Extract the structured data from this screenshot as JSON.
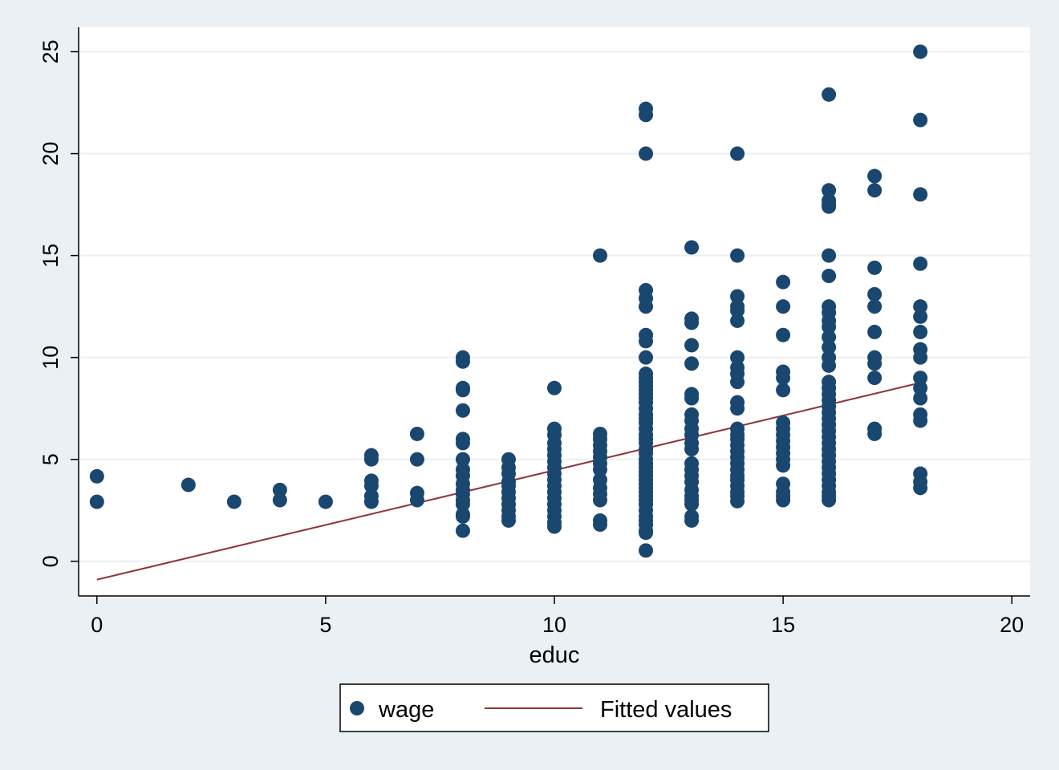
{
  "chart_data": {
    "type": "scatter",
    "title": "",
    "xlabel": "educ",
    "ylabel": "",
    "xlim": [
      -0.4,
      20.4
    ],
    "ylim": [
      -1.7,
      26.2
    ],
    "grid": true,
    "legend_position": "bottom",
    "x_ticks": [
      "0",
      "5",
      "10",
      "15",
      "20"
    ],
    "y_ticks": [
      "0",
      "5",
      "10",
      "15",
      "20",
      "25"
    ],
    "colors": {
      "background": "#eaf0f3",
      "plot_area": "#ffffff",
      "marker": "#1a476f",
      "fit_line": "#90353b",
      "gridline": "#eaf0f3"
    },
    "series": [
      {
        "name": "wage",
        "kind": "scatter",
        "points": [
          [
            0,
            4.17
          ],
          [
            0,
            2.92
          ],
          [
            2,
            3.75
          ],
          [
            3,
            2.92
          ],
          [
            4,
            3.5
          ],
          [
            4,
            3.0
          ],
          [
            5,
            2.92
          ],
          [
            6,
            5.2
          ],
          [
            6,
            5.0
          ],
          [
            6,
            3.95
          ],
          [
            6,
            3.7
          ],
          [
            6,
            3.2
          ],
          [
            6,
            2.92
          ],
          [
            7,
            6.25
          ],
          [
            7,
            5.0
          ],
          [
            7,
            3.35
          ],
          [
            7,
            3.0
          ],
          [
            8,
            10.0
          ],
          [
            8,
            9.8
          ],
          [
            8,
            8.5
          ],
          [
            8,
            8.4
          ],
          [
            8,
            7.4
          ],
          [
            8,
            6.0
          ],
          [
            8,
            5.8
          ],
          [
            8,
            5.0
          ],
          [
            8,
            4.5
          ],
          [
            8,
            4.2
          ],
          [
            8,
            3.8
          ],
          [
            8,
            3.5
          ],
          [
            8,
            3.3
          ],
          [
            8,
            3.0
          ],
          [
            8,
            2.8
          ],
          [
            8,
            2.3
          ],
          [
            8,
            2.2
          ],
          [
            8,
            1.5
          ],
          [
            9,
            5.0
          ],
          [
            9,
            4.6
          ],
          [
            9,
            4.3
          ],
          [
            9,
            3.9
          ],
          [
            9,
            3.7
          ],
          [
            9,
            3.4
          ],
          [
            9,
            3.1
          ],
          [
            9,
            2.8
          ],
          [
            9,
            2.5
          ],
          [
            9,
            2.2
          ],
          [
            9,
            2.0
          ],
          [
            10,
            8.5
          ],
          [
            10,
            6.5
          ],
          [
            10,
            6.2
          ],
          [
            10,
            5.8
          ],
          [
            10,
            5.5
          ],
          [
            10,
            5.2
          ],
          [
            10,
            4.9
          ],
          [
            10,
            4.6
          ],
          [
            10,
            4.3
          ],
          [
            10,
            4.0
          ],
          [
            10,
            3.7
          ],
          [
            10,
            3.4
          ],
          [
            10,
            3.1
          ],
          [
            10,
            2.8
          ],
          [
            10,
            2.5
          ],
          [
            10,
            2.2
          ],
          [
            10,
            1.9
          ],
          [
            10,
            1.7
          ],
          [
            11,
            15.0
          ],
          [
            11,
            6.25
          ],
          [
            11,
            6.0
          ],
          [
            11,
            5.7
          ],
          [
            11,
            5.4
          ],
          [
            11,
            5.1
          ],
          [
            11,
            4.8
          ],
          [
            11,
            4.5
          ],
          [
            11,
            4.0
          ],
          [
            11,
            3.6
          ],
          [
            11,
            3.3
          ],
          [
            11,
            3.0
          ],
          [
            11,
            2.0
          ],
          [
            11,
            1.8
          ],
          [
            12,
            22.2
          ],
          [
            12,
            21.9
          ],
          [
            12,
            20.0
          ],
          [
            12,
            13.3
          ],
          [
            12,
            12.9
          ],
          [
            12,
            12.5
          ],
          [
            12,
            11.1
          ],
          [
            12,
            10.8
          ],
          [
            12,
            10.0
          ],
          [
            12,
            9.2
          ],
          [
            12,
            9.0
          ],
          [
            12,
            8.8
          ],
          [
            12,
            8.6
          ],
          [
            12,
            8.4
          ],
          [
            12,
            8.2
          ],
          [
            12,
            8.0
          ],
          [
            12,
            7.8
          ],
          [
            12,
            7.5
          ],
          [
            12,
            7.2
          ],
          [
            12,
            7.0
          ],
          [
            12,
            6.8
          ],
          [
            12,
            6.5
          ],
          [
            12,
            6.2
          ],
          [
            12,
            6.0
          ],
          [
            12,
            5.8
          ],
          [
            12,
            5.5
          ],
          [
            12,
            5.3
          ],
          [
            12,
            5.0
          ],
          [
            12,
            4.8
          ],
          [
            12,
            4.6
          ],
          [
            12,
            4.4
          ],
          [
            12,
            4.2
          ],
          [
            12,
            4.0
          ],
          [
            12,
            3.8
          ],
          [
            12,
            3.6
          ],
          [
            12,
            3.4
          ],
          [
            12,
            3.2
          ],
          [
            12,
            3.0
          ],
          [
            12,
            2.8
          ],
          [
            12,
            2.5
          ],
          [
            12,
            2.2
          ],
          [
            12,
            2.0
          ],
          [
            12,
            1.8
          ],
          [
            12,
            1.5
          ],
          [
            12,
            1.4
          ],
          [
            12,
            0.53
          ],
          [
            13,
            15.4
          ],
          [
            13,
            11.9
          ],
          [
            13,
            11.7
          ],
          [
            13,
            10.6
          ],
          [
            13,
            9.7
          ],
          [
            13,
            8.2
          ],
          [
            13,
            8.0
          ],
          [
            13,
            7.2
          ],
          [
            13,
            6.9
          ],
          [
            13,
            6.5
          ],
          [
            13,
            6.2
          ],
          [
            13,
            5.8
          ],
          [
            13,
            5.5
          ],
          [
            13,
            4.8
          ],
          [
            13,
            4.5
          ],
          [
            13,
            4.2
          ],
          [
            13,
            3.9
          ],
          [
            13,
            3.5
          ],
          [
            13,
            3.2
          ],
          [
            13,
            3.0
          ],
          [
            13,
            2.8
          ],
          [
            13,
            2.2
          ],
          [
            13,
            2.0
          ],
          [
            14,
            20.0
          ],
          [
            14,
            15.0
          ],
          [
            14,
            13.0
          ],
          [
            14,
            12.5
          ],
          [
            14,
            12.3
          ],
          [
            14,
            11.8
          ],
          [
            14,
            10.0
          ],
          [
            14,
            9.5
          ],
          [
            14,
            9.2
          ],
          [
            14,
            8.8
          ],
          [
            14,
            7.8
          ],
          [
            14,
            7.5
          ],
          [
            14,
            6.5
          ],
          [
            14,
            6.2
          ],
          [
            14,
            6.0
          ],
          [
            14,
            5.7
          ],
          [
            14,
            5.4
          ],
          [
            14,
            5.1
          ],
          [
            14,
            4.8
          ],
          [
            14,
            4.5
          ],
          [
            14,
            4.2
          ],
          [
            14,
            4.0
          ],
          [
            14,
            3.7
          ],
          [
            14,
            3.4
          ],
          [
            14,
            3.2
          ],
          [
            14,
            2.95
          ],
          [
            15,
            13.7
          ],
          [
            15,
            12.5
          ],
          [
            15,
            11.1
          ],
          [
            15,
            9.3
          ],
          [
            15,
            9.0
          ],
          [
            15,
            8.4
          ],
          [
            15,
            6.8
          ],
          [
            15,
            6.5
          ],
          [
            15,
            6.2
          ],
          [
            15,
            5.9
          ],
          [
            15,
            5.6
          ],
          [
            15,
            5.3
          ],
          [
            15,
            5.0
          ],
          [
            15,
            4.7
          ],
          [
            15,
            3.8
          ],
          [
            15,
            3.4
          ],
          [
            15,
            3.2
          ],
          [
            15,
            3.0
          ],
          [
            16,
            22.9
          ],
          [
            16,
            18.2
          ],
          [
            16,
            17.7
          ],
          [
            16,
            17.5
          ],
          [
            16,
            17.4
          ],
          [
            16,
            15.0
          ],
          [
            16,
            14.0
          ],
          [
            16,
            12.5
          ],
          [
            16,
            12.2
          ],
          [
            16,
            11.8
          ],
          [
            16,
            11.5
          ],
          [
            16,
            11.0
          ],
          [
            16,
            10.5
          ],
          [
            16,
            10.0
          ],
          [
            16,
            9.6
          ],
          [
            16,
            8.8
          ],
          [
            16,
            8.5
          ],
          [
            16,
            8.2
          ],
          [
            16,
            7.9
          ],
          [
            16,
            7.6
          ],
          [
            16,
            7.3
          ],
          [
            16,
            7.0
          ],
          [
            16,
            6.7
          ],
          [
            16,
            6.4
          ],
          [
            16,
            6.1
          ],
          [
            16,
            5.8
          ],
          [
            16,
            5.5
          ],
          [
            16,
            5.2
          ],
          [
            16,
            4.9
          ],
          [
            16,
            4.6
          ],
          [
            16,
            4.3
          ],
          [
            16,
            4.0
          ],
          [
            16,
            3.7
          ],
          [
            16,
            3.4
          ],
          [
            16,
            3.2
          ],
          [
            16,
            3.0
          ],
          [
            17,
            18.9
          ],
          [
            17,
            18.2
          ],
          [
            17,
            14.4
          ],
          [
            17,
            13.1
          ],
          [
            17,
            12.5
          ],
          [
            17,
            11.25
          ],
          [
            17,
            10.0
          ],
          [
            17,
            9.7
          ],
          [
            17,
            9.0
          ],
          [
            17,
            6.5
          ],
          [
            17,
            6.25
          ],
          [
            18,
            25.0
          ],
          [
            18,
            21.65
          ],
          [
            18,
            18.0
          ],
          [
            18,
            14.6
          ],
          [
            18,
            12.5
          ],
          [
            18,
            12.0
          ],
          [
            18,
            11.25
          ],
          [
            18,
            10.4
          ],
          [
            18,
            10.0
          ],
          [
            18,
            9.0
          ],
          [
            18,
            8.5
          ],
          [
            18,
            8.0
          ],
          [
            18,
            7.2
          ],
          [
            18,
            6.9
          ],
          [
            18,
            4.3
          ],
          [
            18,
            3.9
          ],
          [
            18,
            3.6
          ]
        ]
      },
      {
        "name": "Fitted values",
        "kind": "line",
        "points": [
          [
            0,
            -0.9
          ],
          [
            18,
            8.76
          ]
        ]
      }
    ]
  }
}
